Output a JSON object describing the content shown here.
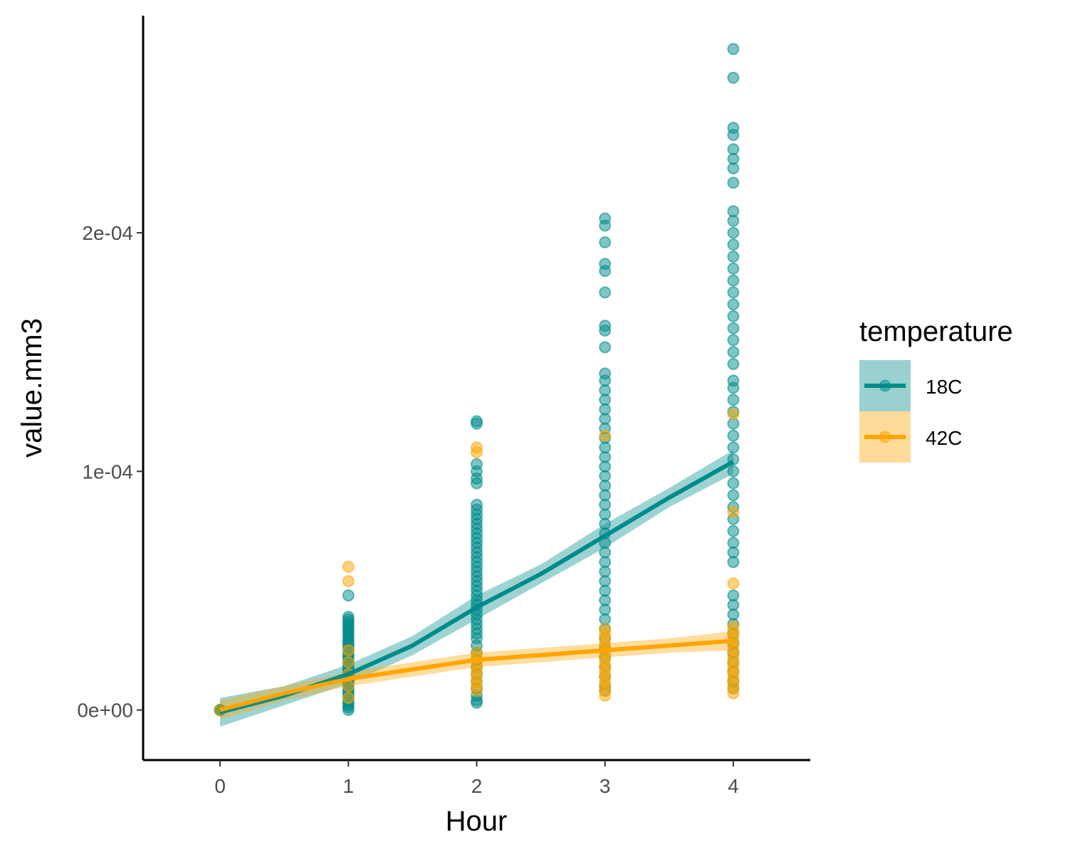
{
  "chart_data": {
    "type": "scatter",
    "xlabel": "Hour",
    "ylabel": "value.mm3",
    "xlim": [
      -0.6,
      4.6
    ],
    "ylim": [
      -2.1e-05,
      0.000291
    ],
    "x_ticks": [
      0,
      1,
      2,
      3,
      4
    ],
    "x_tick_labels": [
      "0",
      "1",
      "2",
      "3",
      "4"
    ],
    "y_ticks": [
      0,
      0.0001,
      0.0002
    ],
    "y_tick_labels": [
      "0e+00",
      "1e-04",
      "2e-04"
    ],
    "grid": false,
    "legend": {
      "title": "temperature",
      "position": "right"
    },
    "series": [
      {
        "name": "18C",
        "color": "#008B8B",
        "points": {
          "0": [
            0.0,
            0.0,
            0.0,
            0.0,
            0.0
          ],
          "1": [
            0.0,
            1e-06,
            2e-06,
            3e-06,
            4e-06,
            5e-06,
            6e-06,
            7e-06,
            8e-06,
            9e-06,
            1e-05,
            1.1e-05,
            1.2e-05,
            1.3e-05,
            1.4e-05,
            1.5e-05,
            1.6e-05,
            1.7e-05,
            1.8e-05,
            1.9e-05,
            2e-05,
            2.1e-05,
            2.2e-05,
            2.3e-05,
            2.4e-05,
            2.5e-05,
            2.6e-05,
            2.7e-05,
            2.8e-05,
            2.9e-05,
            3e-05,
            3.1e-05,
            3.2e-05,
            3.3e-05,
            3.4e-05,
            3.5e-05,
            3.6e-05,
            3.7e-05,
            3.8e-05,
            3.9e-05,
            4.8e-05
          ],
          "2": [
            3e-06,
            4e-06,
            6e-06,
            9e-06,
            1.2e-05,
            1.5e-05,
            1.8e-05,
            2.1e-05,
            2.4e-05,
            2.7e-05,
            3e-05,
            3.2e-05,
            3.4e-05,
            3.6e-05,
            3.8e-05,
            4e-05,
            4.2e-05,
            4.4e-05,
            4.6e-05,
            4.8e-05,
            5e-05,
            5.2e-05,
            5.4e-05,
            5.6e-05,
            5.8e-05,
            6e-05,
            6.2e-05,
            6.4e-05,
            6.6e-05,
            6.8e-05,
            7e-05,
            7.2e-05,
            7.4e-05,
            7.6e-05,
            7.8e-05,
            8e-05,
            8.2e-05,
            8.4e-05,
            8.6e-05,
            9.5e-05,
            9.7e-05,
            0.0001,
            0.000103,
            0.00012,
            0.000121
          ],
          "3": [
            8e-06,
            1e-05,
            1.4e-05,
            1.8e-05,
            2.2e-05,
            2.6e-05,
            3e-05,
            3.4e-05,
            3.8e-05,
            4.2e-05,
            4.6e-05,
            5e-05,
            5.4e-05,
            5.8e-05,
            6.2e-05,
            6.6e-05,
            7e-05,
            7.4e-05,
            7.8e-05,
            8.2e-05,
            8.6e-05,
            9e-05,
            9.4e-05,
            9.8e-05,
            0.000102,
            0.000106,
            0.00011,
            0.000114,
            0.000118,
            0.000122,
            0.000126,
            0.00013,
            0.000134,
            0.000138,
            0.000141,
            0.000152,
            0.000159,
            0.000161,
            0.000175,
            0.000184,
            0.000187,
            0.000196,
            0.000203,
            0.000206
          ],
          "4": [
            9e-06,
            1.2e-05,
            1.6e-05,
            2e-05,
            2.4e-05,
            2.8e-05,
            3.2e-05,
            3.6e-05,
            4e-05,
            4.4e-05,
            4.8e-05,
            6.2e-05,
            6.6e-05,
            7e-05,
            7.5e-05,
            8e-05,
            8.5e-05,
            9e-05,
            9.5e-05,
            0.0001,
            0.000105,
            0.00011,
            0.000115,
            0.00012,
            0.000125,
            0.00013,
            0.000135,
            0.000138,
            0.000145,
            0.00015,
            0.000155,
            0.00016,
            0.000165,
            0.00017,
            0.000175,
            0.00018,
            0.000185,
            0.00019,
            0.000195,
            0.0002,
            0.000205,
            0.000209,
            0.000221,
            0.000227,
            0.000231,
            0.000235,
            0.000241,
            0.000244,
            0.000265,
            0.000277
          ]
        },
        "fit": {
          "x": [
            0,
            0.5,
            1,
            1.5,
            2,
            2.5,
            3,
            3.5,
            4
          ],
          "y": [
            -1e-06,
            6e-06,
            1.5e-05,
            2.7e-05,
            4.3e-05,
            5.7e-05,
            7.3e-05,
            8.9e-05,
            0.000104
          ],
          "band": [
            6e-06,
            4e-06,
            4e-06,
            4e-06,
            5e-06,
            4e-06,
            5e-06,
            4e-06,
            5e-06
          ]
        }
      },
      {
        "name": "42C",
        "color": "#FFA500",
        "points": {
          "0": [
            0.0
          ],
          "1": [
            5e-06,
            1e-05,
            1.5e-05,
            2e-05,
            2.5e-05,
            5.4e-05,
            6e-05
          ],
          "2": [
            8e-06,
            1e-05,
            1.2e-05,
            1.4e-05,
            1.6e-05,
            1.8e-05,
            2e-05,
            2.2e-05,
            2.4e-05,
            0.000108,
            0.00011
          ],
          "3": [
            6e-06,
            8e-06,
            1e-05,
            1.2e-05,
            1.4e-05,
            1.6e-05,
            1.8e-05,
            2e-05,
            2.2e-05,
            2.4e-05,
            2.6e-05,
            2.8e-05,
            3e-05,
            3.2e-05,
            3.4e-05,
            0.000115
          ],
          "4": [
            7e-06,
            9e-06,
            1.1e-05,
            1.3e-05,
            1.5e-05,
            1.7e-05,
            1.9e-05,
            2.1e-05,
            2.3e-05,
            2.5e-05,
            2.7e-05,
            2.9e-05,
            3.1e-05,
            3.3e-05,
            3.5e-05,
            5.3e-05,
            8.3e-05,
            0.000124
          ]
        },
        "fit": {
          "x": [
            0,
            0.5,
            1,
            1.5,
            2,
            2.5,
            3,
            3.5,
            4
          ],
          "y": [
            0.0,
            7e-06,
            1.3e-05,
            1.7e-05,
            2.1e-05,
            2.3e-05,
            2.5e-05,
            2.7e-05,
            2.9e-05
          ],
          "band": [
            4e-06,
            3e-06,
            3e-06,
            3e-06,
            3e-06,
            3e-06,
            3e-06,
            3e-06,
            4e-06
          ]
        }
      }
    ]
  }
}
